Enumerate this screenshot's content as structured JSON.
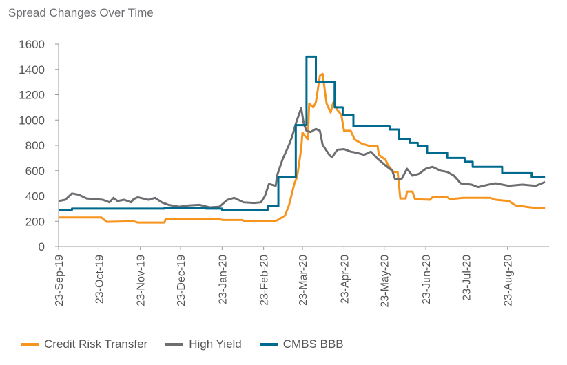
{
  "chart_data": {
    "type": "line",
    "title": "Spread Changes Over Time",
    "xlabel": "",
    "ylabel": "",
    "ylim": [
      0,
      1600
    ],
    "yticks": [
      0,
      200,
      400,
      600,
      800,
      1000,
      1200,
      1400,
      1600
    ],
    "xlim": [
      "2019-09-23",
      "2020-09-23"
    ],
    "xticks": [
      "23-Sep-19",
      "23-Oct-19",
      "23-Nov-19",
      "23-Dec-19",
      "23-Jan-20",
      "23-Feb-20",
      "23-Mar-20",
      "23-Apr-20",
      "23-May-20",
      "23-Jun-20",
      "23-Jul-20",
      "23-Aug-20"
    ],
    "xtick_dates": [
      "2019-09-23",
      "2019-10-23",
      "2019-11-23",
      "2019-12-23",
      "2020-01-23",
      "2020-02-23",
      "2020-03-23",
      "2020-04-23",
      "2020-05-23",
      "2020-06-23",
      "2020-07-23",
      "2020-08-23"
    ],
    "grid": false,
    "legend_position": "bottom",
    "series": [
      {
        "name": "Credit Risk Transfer",
        "color": "#F7941D",
        "interpolation": "linear",
        "points": [
          [
            "2019-09-23",
            230
          ],
          [
            "2019-10-25",
            230
          ],
          [
            "2019-10-29",
            195
          ],
          [
            "2019-11-18",
            200
          ],
          [
            "2019-11-21",
            190
          ],
          [
            "2019-12-11",
            190
          ],
          [
            "2019-12-12",
            220
          ],
          [
            "2020-01-01",
            220
          ],
          [
            "2020-01-04",
            215
          ],
          [
            "2020-01-21",
            215
          ],
          [
            "2020-01-24",
            210
          ],
          [
            "2020-02-07",
            210
          ],
          [
            "2020-02-09",
            200
          ],
          [
            "2020-02-29",
            200
          ],
          [
            "2020-03-04",
            207
          ],
          [
            "2020-03-10",
            245
          ],
          [
            "2020-03-13",
            330
          ],
          [
            "2020-03-17",
            500
          ],
          [
            "2020-03-19",
            550
          ],
          [
            "2020-03-22",
            770
          ],
          [
            "2020-03-23",
            900
          ],
          [
            "2020-03-27",
            845
          ],
          [
            "2020-03-28",
            1130
          ],
          [
            "2020-03-31",
            1100
          ],
          [
            "2020-04-02",
            1140
          ],
          [
            "2020-04-05",
            1350
          ],
          [
            "2020-04-07",
            1365
          ],
          [
            "2020-04-10",
            1130
          ],
          [
            "2020-04-13",
            1060
          ],
          [
            "2020-04-15",
            1140
          ],
          [
            "2020-04-18",
            1080
          ],
          [
            "2020-04-21",
            1040
          ],
          [
            "2020-04-23",
            915
          ],
          [
            "2020-04-28",
            915
          ],
          [
            "2020-05-01",
            845
          ],
          [
            "2020-05-06",
            815
          ],
          [
            "2020-05-12",
            795
          ],
          [
            "2020-05-18",
            795
          ],
          [
            "2020-05-19",
            725
          ],
          [
            "2020-05-24",
            685
          ],
          [
            "2020-05-26",
            640
          ],
          [
            "2020-05-30",
            590
          ],
          [
            "2020-06-02",
            590
          ],
          [
            "2020-06-04",
            380
          ],
          [
            "2020-06-08",
            380
          ],
          [
            "2020-06-09",
            435
          ],
          [
            "2020-06-13",
            435
          ],
          [
            "2020-06-15",
            375
          ],
          [
            "2020-06-26",
            370
          ],
          [
            "2020-06-28",
            390
          ],
          [
            "2020-07-09",
            390
          ],
          [
            "2020-07-11",
            375
          ],
          [
            "2020-07-21",
            385
          ],
          [
            "2020-08-10",
            385
          ],
          [
            "2020-08-14",
            370
          ],
          [
            "2020-08-24",
            360
          ],
          [
            "2020-08-29",
            325
          ],
          [
            "2020-09-13",
            305
          ],
          [
            "2020-09-20",
            305
          ]
        ]
      },
      {
        "name": "High Yield",
        "color": "#6D6E71",
        "interpolation": "linear",
        "points": [
          [
            "2019-09-23",
            360
          ],
          [
            "2019-09-28",
            370
          ],
          [
            "2019-10-03",
            420
          ],
          [
            "2019-10-08",
            410
          ],
          [
            "2019-10-14",
            380
          ],
          [
            "2019-10-21",
            375
          ],
          [
            "2019-10-26",
            370
          ],
          [
            "2019-10-31",
            350
          ],
          [
            "2019-11-03",
            385
          ],
          [
            "2019-11-06",
            360
          ],
          [
            "2019-11-11",
            370
          ],
          [
            "2019-11-16",
            350
          ],
          [
            "2019-11-18",
            375
          ],
          [
            "2019-11-21",
            390
          ],
          [
            "2019-11-29",
            370
          ],
          [
            "2019-12-04",
            385
          ],
          [
            "2019-12-09",
            350
          ],
          [
            "2019-12-14",
            330
          ],
          [
            "2019-12-22",
            315
          ],
          [
            "2019-12-29",
            325
          ],
          [
            "2020-01-06",
            330
          ],
          [
            "2020-01-14",
            310
          ],
          [
            "2020-01-21",
            315
          ],
          [
            "2020-01-27",
            370
          ],
          [
            "2020-02-01",
            385
          ],
          [
            "2020-02-08",
            350
          ],
          [
            "2020-02-16",
            345
          ],
          [
            "2020-02-21",
            350
          ],
          [
            "2020-02-24",
            400
          ],
          [
            "2020-02-27",
            495
          ],
          [
            "2020-03-03",
            480
          ],
          [
            "2020-03-04",
            560
          ],
          [
            "2020-03-08",
            685
          ],
          [
            "2020-03-13",
            805
          ],
          [
            "2020-03-15",
            860
          ],
          [
            "2020-03-18",
            970
          ],
          [
            "2020-03-22",
            1095
          ],
          [
            "2020-03-24",
            970
          ],
          [
            "2020-03-26",
            915
          ],
          [
            "2020-03-29",
            905
          ],
          [
            "2020-04-02",
            930
          ],
          [
            "2020-04-05",
            915
          ],
          [
            "2020-04-07",
            805
          ],
          [
            "2020-04-12",
            725
          ],
          [
            "2020-04-14",
            705
          ],
          [
            "2020-04-18",
            765
          ],
          [
            "2020-04-23",
            770
          ],
          [
            "2020-04-28",
            750
          ],
          [
            "2020-05-03",
            740
          ],
          [
            "2020-05-08",
            725
          ],
          [
            "2020-05-13",
            750
          ],
          [
            "2020-05-18",
            695
          ],
          [
            "2020-05-24",
            640
          ],
          [
            "2020-05-29",
            600
          ],
          [
            "2020-05-31",
            535
          ],
          [
            "2020-06-05",
            535
          ],
          [
            "2020-06-09",
            615
          ],
          [
            "2020-06-13",
            560
          ],
          [
            "2020-06-18",
            575
          ],
          [
            "2020-06-23",
            615
          ],
          [
            "2020-06-28",
            630
          ],
          [
            "2020-07-04",
            600
          ],
          [
            "2020-07-09",
            590
          ],
          [
            "2020-07-14",
            560
          ],
          [
            "2020-07-19",
            500
          ],
          [
            "2020-07-27",
            490
          ],
          [
            "2020-08-01",
            470
          ],
          [
            "2020-08-09",
            490
          ],
          [
            "2020-08-14",
            500
          ],
          [
            "2020-08-24",
            480
          ],
          [
            "2020-09-03",
            490
          ],
          [
            "2020-09-13",
            480
          ],
          [
            "2020-09-20",
            510
          ]
        ]
      },
      {
        "name": "CMBS BBB",
        "color": "#006A8E",
        "interpolation": "step",
        "points": [
          [
            "2019-09-23",
            290
          ],
          [
            "2019-10-03",
            300
          ],
          [
            "2019-12-11",
            305
          ],
          [
            "2020-01-11",
            300
          ],
          [
            "2020-01-23",
            290
          ],
          [
            "2020-02-26",
            320
          ],
          [
            "2020-03-05",
            550
          ],
          [
            "2020-03-18",
            960
          ],
          [
            "2020-03-26",
            1500
          ],
          [
            "2020-04-02",
            1300
          ],
          [
            "2020-04-16",
            1100
          ],
          [
            "2020-04-22",
            1040
          ],
          [
            "2020-04-30",
            950
          ],
          [
            "2020-05-27",
            925
          ],
          [
            "2020-06-03",
            850
          ],
          [
            "2020-06-11",
            820
          ],
          [
            "2020-06-17",
            795
          ],
          [
            "2020-06-24",
            740
          ],
          [
            "2020-07-09",
            700
          ],
          [
            "2020-07-22",
            670
          ],
          [
            "2020-07-28",
            630
          ],
          [
            "2020-08-19",
            580
          ],
          [
            "2020-09-10",
            550
          ],
          [
            "2020-09-20",
            550
          ]
        ]
      }
    ]
  }
}
